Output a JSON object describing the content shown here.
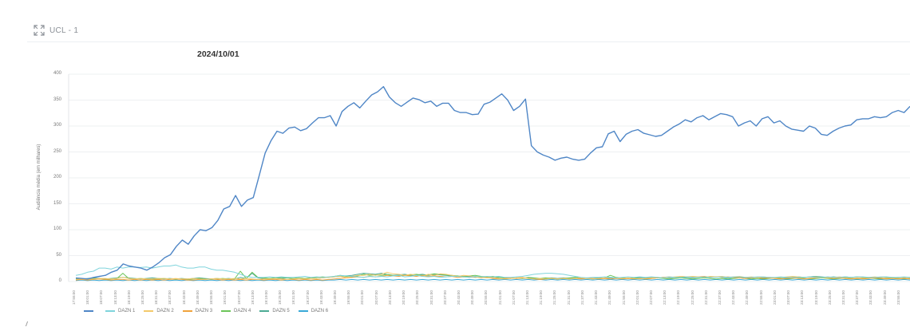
{
  "panel": {
    "title": "UCL - 1",
    "icon": "expand-icon"
  },
  "chart_data": {
    "type": "line",
    "title": "2024/10/01",
    "xlabel": "",
    "ylabel": "Audiência média (em milhares)",
    "ylim": [
      0,
      400
    ],
    "yticks": [
      0,
      50,
      100,
      150,
      200,
      250,
      300,
      350,
      400
    ],
    "grid": true,
    "legend_position": "bottom-left",
    "x_ticks": [
      "17:55:00",
      "18:01:00",
      "18:07:00",
      "18:13:00",
      "18:19:00",
      "18:25:00",
      "18:31:00",
      "18:37:00",
      "18:43:00",
      "18:49:00",
      "18:55:00",
      "19:01:00",
      "19:07:00",
      "19:13:00",
      "19:19:00",
      "19:25:00",
      "19:31:00",
      "19:37:00",
      "19:43:00",
      "19:49:00",
      "19:55:00",
      "20:01:00",
      "20:07:00",
      "20:13:00",
      "20:19:00",
      "20:25:00",
      "20:31:00",
      "20:37:00",
      "20:43:00",
      "20:49:00",
      "20:55:00",
      "21:01:00",
      "21:07:00",
      "21:13:00",
      "21:19:00",
      "21:25:00",
      "21:31:00",
      "21:37:00",
      "21:43:00",
      "21:49:00",
      "21:55:00",
      "22:01:00",
      "22:07:00",
      "22:13:00",
      "22:19:00",
      "22:25:00",
      "22:31:00",
      "22:37:00",
      "22:43:00",
      "22:49:00",
      "22:55:00",
      "23:01:00",
      "23:07:00",
      "23:13:00",
      "23:19:00",
      "23:25:00",
      "23:31:00",
      "23:37:00",
      "23:43:00",
      "23:49:00",
      "23:55:00"
    ],
    "series": [
      {
        "name": "",
        "color": "#4f86c6",
        "values": [
          7,
          6,
          5,
          8,
          10,
          12,
          18,
          22,
          34,
          30,
          28,
          26,
          22,
          28,
          36,
          46,
          52,
          68,
          80,
          72,
          88,
          100,
          98,
          104,
          118,
          140,
          145,
          166,
          145,
          157,
          162,
          205,
          248,
          272,
          290,
          286,
          296,
          298,
          291,
          295,
          306,
          316,
          316,
          320,
          300,
          328,
          338,
          345,
          335,
          348,
          360,
          366,
          376,
          356,
          345,
          338,
          346,
          354,
          351,
          345,
          348,
          338,
          344,
          344,
          330,
          326,
          326,
          322,
          323,
          342,
          346,
          354,
          362,
          350,
          330,
          338,
          352,
          262,
          250,
          244,
          240,
          234,
          238,
          240,
          236,
          234,
          236,
          248,
          258,
          260,
          285,
          290,
          270,
          284,
          290,
          293,
          286,
          283,
          280,
          282,
          290,
          298,
          304,
          312,
          308,
          316,
          320,
          312,
          318,
          324,
          322,
          318,
          300,
          306,
          310,
          300,
          314,
          318,
          306,
          310,
          300,
          294,
          292,
          290,
          300,
          296,
          284,
          282,
          290,
          296,
          300,
          302,
          312,
          314,
          314,
          318,
          316,
          318,
          326,
          330,
          326,
          338
        ]
      },
      {
        "name": "DAZN 1",
        "color": "#7fd4dc",
        "values": [
          12,
          14,
          18,
          20,
          26,
          26,
          24,
          28,
          26,
          28,
          28,
          27,
          28,
          26,
          28,
          30,
          30,
          32,
          28,
          26,
          26,
          28,
          28,
          24,
          22,
          22,
          20,
          18,
          14,
          10,
          8,
          8,
          8,
          9,
          8,
          9,
          8,
          8,
          9,
          10,
          8,
          9,
          8,
          9,
          10,
          12,
          11,
          10,
          9,
          8,
          10,
          9,
          10,
          9,
          11,
          12,
          9,
          10,
          12,
          10,
          9,
          10,
          8,
          9,
          10,
          10,
          9,
          8,
          10,
          9,
          10,
          9,
          10,
          8,
          8,
          9,
          10,
          12,
          14,
          15,
          16,
          16,
          15,
          14,
          12,
          10,
          8,
          7,
          8,
          8,
          9,
          8,
          7,
          8,
          9,
          8,
          9,
          8,
          9,
          8,
          7,
          9,
          8,
          8,
          9,
          8,
          8,
          9,
          8,
          8,
          9,
          8,
          9,
          9,
          8,
          8,
          9,
          9,
          8,
          8,
          9,
          8,
          8,
          8,
          8,
          9,
          8,
          8,
          9,
          8,
          8,
          9,
          8,
          9,
          9,
          8,
          8,
          9,
          9,
          8,
          8,
          9,
          8
        ]
      },
      {
        "name": "DAZN 2",
        "color": "#f3c96b",
        "values": [
          4,
          5,
          4,
          5,
          6,
          6,
          5,
          6,
          8,
          6,
          5,
          6,
          5,
          5,
          6,
          6,
          5,
          6,
          5,
          5,
          6,
          5,
          4,
          5,
          6,
          5,
          5,
          6,
          5,
          6,
          5,
          4,
          5,
          5,
          6,
          5,
          4,
          5,
          6,
          5,
          6,
          6,
          7,
          8,
          9,
          10,
          8,
          10,
          12,
          12,
          14,
          12,
          14,
          18,
          15,
          14,
          12,
          14,
          12,
          10,
          14,
          12,
          15,
          14,
          12,
          10,
          12,
          11,
          9,
          8,
          7,
          8,
          6,
          5,
          6,
          7,
          8,
          6,
          5,
          6,
          5,
          6,
          5,
          6,
          5,
          6,
          7,
          6,
          5,
          6,
          7,
          8,
          7,
          6,
          7,
          6,
          5,
          6,
          7,
          8,
          7,
          8,
          9,
          10,
          9,
          10,
          9,
          8,
          10,
          9,
          10,
          8,
          9,
          10,
          8,
          9,
          8,
          9,
          8,
          7,
          8,
          9,
          10,
          9,
          8,
          8,
          9,
          8,
          7,
          8,
          9,
          8,
          7,
          8,
          7,
          8,
          9,
          8,
          7,
          8,
          7,
          8,
          7
        ]
      },
      {
        "name": "DAZN 3",
        "color": "#f0a33c",
        "values": [
          3,
          4,
          3,
          4,
          5,
          4,
          3,
          4,
          4,
          3,
          4,
          3,
          4,
          3,
          4,
          3,
          4,
          5,
          4,
          3,
          3,
          4,
          4,
          5,
          4,
          3,
          4,
          3,
          4,
          3,
          4,
          4,
          3,
          4,
          4,
          3,
          4,
          4,
          3,
          4,
          3,
          4,
          3,
          4,
          5,
          6,
          7,
          8,
          9,
          8,
          10,
          9,
          10,
          12,
          11,
          10,
          12,
          11,
          10,
          12,
          10,
          11,
          10,
          9,
          10,
          8,
          9,
          8,
          9,
          7,
          8,
          6,
          5,
          6,
          7,
          6,
          7,
          6,
          5,
          4,
          5,
          6,
          5,
          6,
          5,
          6,
          5,
          6,
          6,
          5,
          6,
          5,
          6,
          5,
          6,
          5,
          6,
          5,
          6,
          7,
          8,
          9,
          8,
          10,
          9,
          8,
          9,
          10,
          8,
          9,
          8,
          9,
          8,
          7,
          6,
          7,
          8,
          6,
          7,
          6,
          5,
          6,
          7,
          6,
          5,
          6,
          7,
          8,
          7,
          6,
          7,
          6,
          5,
          6,
          5,
          6,
          7,
          6,
          5,
          6,
          5,
          6,
          5
        ]
      },
      {
        "name": "DAZN 4",
        "color": "#6cc55a",
        "values": [
          5,
          4,
          5,
          6,
          5,
          4,
          5,
          6,
          16,
          6,
          5,
          6,
          5,
          4,
          5,
          6,
          5,
          4,
          5,
          4,
          5,
          6,
          5,
          4,
          5,
          6,
          5,
          5,
          20,
          6,
          18,
          8,
          7,
          6,
          7,
          8,
          7,
          6,
          7,
          6,
          7,
          8,
          9,
          8,
          10,
          12,
          10,
          9,
          11,
          14,
          12,
          13,
          12,
          14,
          12,
          11,
          12,
          13,
          14,
          12,
          13,
          15,
          14,
          13,
          12,
          11,
          10,
          11,
          12,
          10,
          9,
          10,
          8,
          7,
          6,
          7,
          6,
          8,
          7,
          6,
          7,
          6,
          5,
          6,
          7,
          8,
          7,
          6,
          5,
          6,
          7,
          12,
          8,
          7,
          6,
          7,
          6,
          5,
          6,
          7,
          6,
          5,
          6,
          7,
          6,
          5,
          6,
          7,
          6,
          5,
          6,
          5,
          6,
          7,
          6,
          5,
          6,
          5,
          6,
          7,
          6,
          5,
          6,
          7,
          6,
          5,
          6,
          7,
          6,
          5,
          6,
          7,
          6,
          5,
          6,
          7,
          6,
          5,
          6,
          7,
          6,
          5,
          6
        ]
      },
      {
        "name": "DAZN 5",
        "color": "#4cab94",
        "values": [
          6,
          5,
          6,
          7,
          6,
          5,
          6,
          7,
          8,
          7,
          6,
          5,
          6,
          7,
          6,
          5,
          6,
          5,
          6,
          5,
          6,
          7,
          6,
          5,
          6,
          5,
          6,
          5,
          8,
          6,
          16,
          7,
          6,
          6,
          7,
          6,
          7,
          6,
          7,
          6,
          7,
          6,
          7,
          8,
          9,
          10,
          11,
          12,
          14,
          16,
          15,
          14,
          16,
          14,
          12,
          13,
          14,
          12,
          13,
          14,
          12,
          14,
          13,
          12,
          11,
          10,
          9,
          10,
          8,
          9,
          8,
          7,
          8,
          7,
          6,
          7,
          6,
          7,
          6,
          5,
          6,
          7,
          6,
          7,
          6,
          7,
          6,
          7,
          6,
          7,
          6,
          7,
          6,
          7,
          6,
          7,
          8,
          7,
          8,
          7,
          8,
          7,
          8,
          7,
          8,
          7,
          8,
          9,
          8,
          9,
          8,
          7,
          8,
          7,
          8,
          7,
          8,
          7,
          8,
          7,
          8,
          7,
          8,
          9,
          8,
          9,
          10,
          9,
          8,
          9,
          8,
          9,
          8,
          9,
          8,
          7,
          8,
          7,
          8,
          7,
          8,
          7,
          8
        ]
      },
      {
        "name": "DAZN 6",
        "color": "#3aa9d8",
        "values": [
          2,
          3,
          2,
          3,
          2,
          3,
          2,
          3,
          2,
          3,
          2,
          3,
          2,
          3,
          2,
          3,
          2,
          3,
          2,
          3,
          2,
          3,
          2,
          3,
          2,
          3,
          2,
          3,
          2,
          3,
          2,
          3,
          2,
          3,
          2,
          3,
          2,
          3,
          2,
          3,
          2,
          3,
          2,
          3,
          3,
          4,
          3,
          4,
          3,
          4,
          3,
          4,
          3,
          4,
          3,
          4,
          3,
          4,
          3,
          4,
          3,
          4,
          3,
          4,
          3,
          4,
          3,
          4,
          3,
          4,
          3,
          4,
          3,
          4,
          3,
          4,
          3,
          4,
          3,
          4,
          3,
          4,
          3,
          4,
          3,
          4,
          3,
          4,
          3,
          4,
          3,
          4,
          3,
          4,
          3,
          4,
          3,
          4,
          3,
          4,
          3,
          4,
          3,
          4,
          3,
          4,
          3,
          4,
          3,
          4,
          3,
          4,
          3,
          4,
          3,
          4,
          3,
          4,
          3,
          4,
          3,
          4,
          3,
          4,
          3,
          4,
          3,
          4,
          3,
          4,
          3,
          4,
          3,
          4,
          3,
          4,
          3,
          4,
          3,
          4,
          3,
          4,
          3
        ]
      }
    ]
  }
}
